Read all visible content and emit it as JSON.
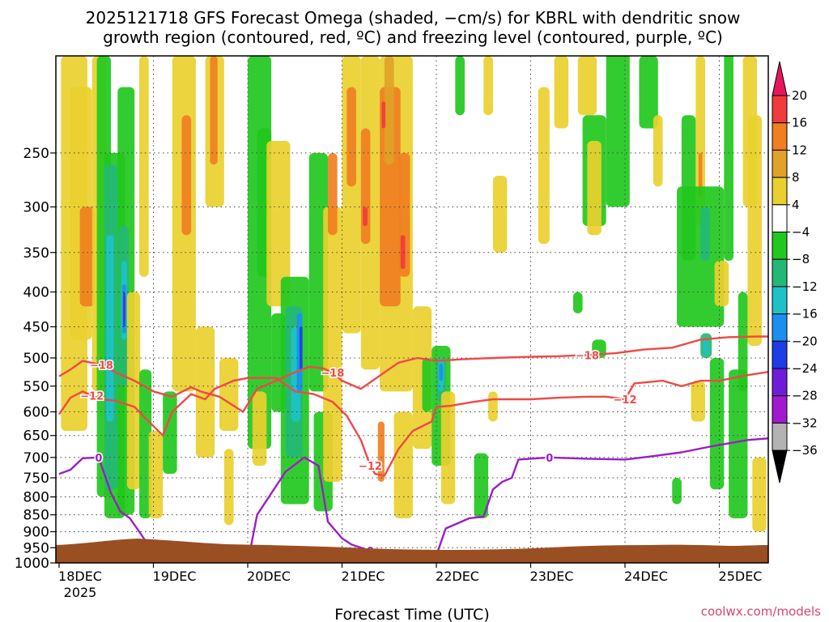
{
  "chart_data": {
    "type": "heatmap",
    "title_lines": [
      "2025121718 GFS Forecast Omega (shaded, −cm/s) for KBRL with dendritic snow",
      "growth region (contoured, red, ºC) and freezing level (contoured, purple, ºC)"
    ],
    "xlabel": "Forecast Time (UTC)",
    "credit": "coolwx.com/models",
    "x_ticks": [
      "18DEC",
      "19DEC",
      "20DEC",
      "21DEC",
      "22DEC",
      "23DEC",
      "24DEC",
      "25DEC"
    ],
    "x_year": "2025",
    "y_ticks": [
      250,
      300,
      350,
      400,
      450,
      500,
      550,
      600,
      650,
      700,
      750,
      800,
      850,
      900,
      950,
      1000
    ],
    "ylim": [
      1000,
      180
    ],
    "y_scale": "log-pressure",
    "grid": "dotted",
    "colorbar": {
      "labels": [
        "20",
        "16",
        "12",
        "8",
        "4",
        "−4",
        "−8",
        "−12",
        "−16",
        "−20",
        "−24",
        "−28",
        "−32",
        "−36"
      ],
      "colors": [
        "#e8175d",
        "#f03c3c",
        "#f07f21",
        "#e0a228",
        "#e9d02e",
        "#ffffff",
        "#22c81e",
        "#24b877",
        "#1dc2c8",
        "#1a8ff0",
        "#1d3de6",
        "#6e1cd9",
        "#a11ad0",
        "#b3b3b3",
        "#000000"
      ]
    },
    "contours": [
      {
        "name": "freezing level",
        "color": "#9b1dc9",
        "label": "0",
        "points": [
          [
            0.0,
            740
          ],
          [
            0.12,
            730
          ],
          [
            0.25,
            702
          ],
          [
            0.42,
            700
          ],
          [
            0.55,
            790
          ],
          [
            0.65,
            840
          ],
          [
            0.75,
            860
          ],
          [
            0.85,
            900
          ],
          [
            1.0,
            965
          ],
          [
            1.5,
            1000
          ],
          [
            2.0,
            1000
          ],
          [
            2.1,
            850
          ],
          [
            2.4,
            735
          ],
          [
            2.6,
            700
          ],
          [
            2.75,
            720
          ],
          [
            2.85,
            870
          ],
          [
            3.0,
            920
          ],
          [
            3.1,
            940
          ],
          [
            3.3,
            960
          ],
          [
            3.45,
            998
          ],
          [
            3.7,
            1000
          ],
          [
            4.0,
            975
          ],
          [
            4.1,
            890
          ],
          [
            4.35,
            860
          ],
          [
            4.5,
            855
          ],
          [
            4.6,
            780
          ],
          [
            4.7,
            760
          ],
          [
            4.8,
            750
          ],
          [
            4.87,
            705
          ],
          [
            5.2,
            700
          ],
          [
            5.6,
            703
          ],
          [
            6.0,
            705
          ],
          [
            6.3,
            697
          ],
          [
            6.6,
            688
          ],
          [
            6.9,
            675
          ],
          [
            7.3,
            660
          ],
          [
            7.6,
            655
          ]
        ]
      },
      {
        "name": "dendritic growth −12",
        "color": "#f04848",
        "label": "−12",
        "points": [
          [
            0.0,
            605
          ],
          [
            0.12,
            572
          ],
          [
            0.25,
            560
          ],
          [
            0.35,
            568
          ],
          [
            0.45,
            575
          ],
          [
            0.6,
            578
          ],
          [
            0.8,
            590
          ],
          [
            0.9,
            610
          ],
          [
            1.1,
            650
          ],
          [
            1.2,
            600
          ],
          [
            1.4,
            565
          ],
          [
            1.55,
            575
          ],
          [
            1.65,
            555
          ],
          [
            1.85,
            540
          ],
          [
            2.0,
            535
          ],
          [
            2.3,
            535
          ],
          [
            2.5,
            560
          ],
          [
            2.7,
            565
          ],
          [
            2.9,
            580
          ],
          [
            3.05,
            608
          ],
          [
            3.2,
            660
          ],
          [
            3.3,
            720
          ],
          [
            3.35,
            740
          ],
          [
            3.45,
            745
          ],
          [
            3.6,
            680
          ],
          [
            3.75,
            640
          ],
          [
            3.95,
            620
          ],
          [
            4.0,
            590
          ],
          [
            4.15,
            588
          ],
          [
            4.4,
            580
          ],
          [
            4.6,
            575
          ],
          [
            5.0,
            575
          ],
          [
            5.3,
            572
          ],
          [
            5.6,
            570
          ],
          [
            5.8,
            570
          ],
          [
            6.0,
            575
          ],
          [
            6.1,
            545
          ],
          [
            6.4,
            540
          ],
          [
            6.6,
            550
          ],
          [
            6.8,
            540
          ],
          [
            7.0,
            540
          ],
          [
            7.3,
            530
          ],
          [
            7.6,
            522
          ]
        ]
      },
      {
        "name": "dendritic growth −18",
        "color": "#f04848",
        "label": "−18",
        "points": [
          [
            0.0,
            532
          ],
          [
            0.12,
            520
          ],
          [
            0.25,
            505
          ],
          [
            0.45,
            512
          ],
          [
            0.6,
            525
          ],
          [
            0.8,
            540
          ],
          [
            1.0,
            560
          ],
          [
            1.2,
            570
          ],
          [
            1.4,
            552
          ],
          [
            1.5,
            560
          ],
          [
            1.7,
            570
          ],
          [
            1.95,
            600
          ],
          [
            2.05,
            570
          ],
          [
            2.1,
            555
          ],
          [
            2.3,
            540
          ],
          [
            2.5,
            525
          ],
          [
            2.65,
            515
          ],
          [
            2.8,
            518
          ],
          [
            2.9,
            525
          ],
          [
            3.0,
            540
          ],
          [
            3.2,
            555
          ],
          [
            3.45,
            525
          ],
          [
            3.6,
            508
          ],
          [
            3.8,
            500
          ],
          [
            4.0,
            505
          ],
          [
            4.3,
            502
          ],
          [
            4.6,
            500
          ],
          [
            5.0,
            498
          ],
          [
            5.3,
            497
          ],
          [
            5.6,
            495
          ],
          [
            5.9,
            492
          ],
          [
            6.2,
            486
          ],
          [
            6.5,
            483
          ],
          [
            6.8,
            470
          ],
          [
            7.1,
            466
          ],
          [
            7.4,
            465
          ],
          [
            7.6,
            465
          ]
        ]
      }
    ]
  }
}
